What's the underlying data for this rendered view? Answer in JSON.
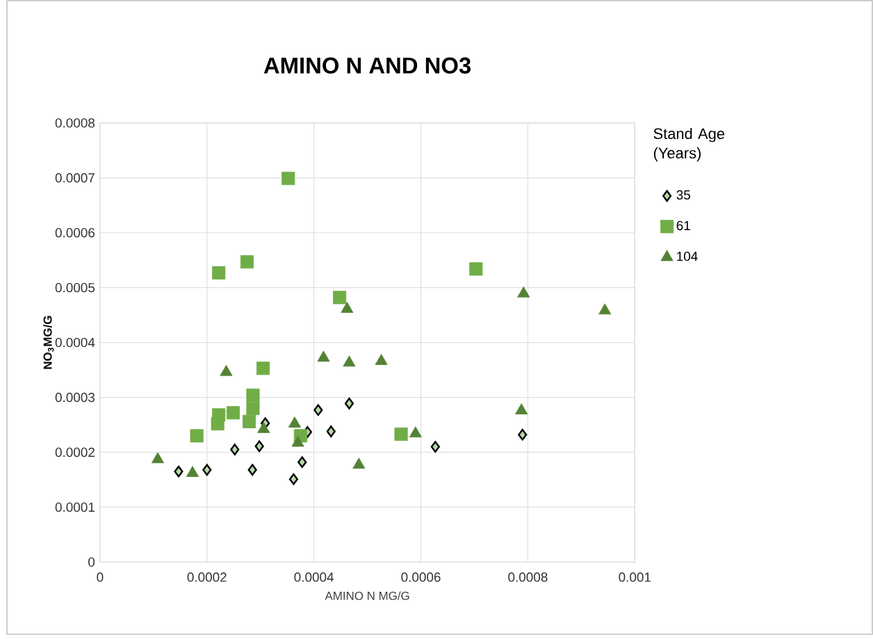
{
  "chart_data": {
    "type": "scatter",
    "title": "AMINO N AND NO3",
    "xlabel": "AMINO N MG/G",
    "ylabel": "NO$_{3}$MG/G",
    "legend_title": "Stand Age (Years)",
    "legend": "right",
    "grid": true,
    "xlim": [
      0,
      0.001
    ],
    "xticks": [
      0,
      0.0002,
      0.0004,
      0.0006,
      0.0008,
      0.001
    ],
    "ylim": [
      0,
      0.0008
    ],
    "yticks": [
      0,
      0.0001,
      0.0002,
      0.0003,
      0.0004,
      0.0005,
      0.0006,
      0.0007,
      0.0008
    ],
    "series": [
      {
        "name": "35",
        "color": "#b8d8a8",
        "marker": "diamond",
        "x": [
          0.000147,
          0.0002,
          0.000252,
          0.000285,
          0.000298,
          0.000309,
          0.000362,
          0.000378,
          0.000388,
          0.000408,
          0.000432,
          0.000466,
          0.000627,
          0.00079
        ],
        "values": [
          0.000165,
          0.000168,
          0.000205,
          0.000168,
          0.000211,
          0.000253,
          0.000151,
          0.000182,
          0.000237,
          0.000277,
          0.000238,
          0.000289,
          0.00021,
          0.000232
        ]
      },
      {
        "name": "61",
        "color": "#70ad47",
        "marker": "square",
        "x": [
          0.000352,
          0.000222,
          0.000275,
          0.000448,
          0.000305,
          0.000286,
          0.000286,
          0.000222,
          0.00022,
          0.000249,
          0.000279,
          0.000181,
          0.000375,
          0.000703,
          0.000563
        ],
        "values": [
          0.000699,
          0.000527,
          0.000547,
          0.000482,
          0.000353,
          0.000304,
          0.00028,
          0.000268,
          0.000252,
          0.000272,
          0.000256,
          0.00023,
          0.00023,
          0.000534,
          0.000233
        ]
      },
      {
        "name": "104",
        "color": "#548235",
        "marker": "triangle",
        "x": [
          0.000108,
          0.000173,
          0.000236,
          0.000306,
          0.000364,
          0.00037,
          0.000418,
          0.000466,
          0.000462,
          0.000484,
          0.000526,
          0.00059,
          0.000792,
          0.000944,
          0.000788
        ],
        "values": [
          0.000187,
          0.000162,
          0.000346,
          0.000242,
          0.000252,
          0.000217,
          0.000372,
          0.000363,
          0.000461,
          0.000177,
          0.000366,
          0.000234,
          0.000489,
          0.000458,
          0.000276
        ]
      }
    ]
  }
}
